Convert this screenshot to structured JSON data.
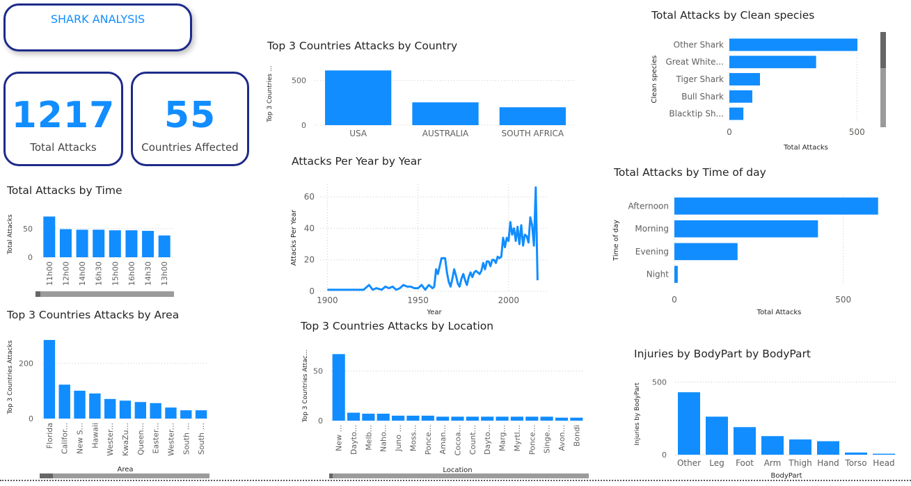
{
  "header": {
    "title": "SHARK ANALYSIS"
  },
  "kpis": {
    "total_attacks": {
      "value": "1217",
      "label": "Total Attacks"
    },
    "countries": {
      "value": "55",
      "label": "Countries Affected"
    }
  },
  "colors": {
    "bar": "#118dff",
    "border": "#1d2a8a",
    "grid": "#c8c8c8",
    "text": "#605e5c"
  },
  "chart_data": [
    {
      "id": "time",
      "type": "bar",
      "title": "Total Attacks by Time",
      "xlabel": "",
      "ylabel": "Total Attacks",
      "categories": [
        "11h00",
        "12h00",
        "14h00",
        "16h30",
        "15h00",
        "16h00",
        "14h30",
        "13h00"
      ],
      "values": [
        71,
        49,
        48,
        48,
        47,
        47,
        46,
        38
      ],
      "yticks": [
        0,
        50
      ],
      "ylim": [
        0,
        80
      ]
    },
    {
      "id": "area",
      "type": "bar",
      "title": "Top 3 Countries Attacks by Area",
      "xlabel": "Area",
      "ylabel": "Top 3 Countries Attacks",
      "categories": [
        "Florida",
        "Califor...",
        "New S...",
        "Hawaii",
        "Wester...",
        "KwaZu...",
        "Queen...",
        "Easter...",
        "Wester...",
        "South ...",
        "South ..."
      ],
      "values": [
        285,
        123,
        101,
        91,
        71,
        65,
        60,
        56,
        40,
        30,
        30
      ],
      "yticks": [
        0,
        200
      ],
      "ylim": [
        0,
        300
      ]
    },
    {
      "id": "country",
      "type": "bar",
      "title": "Top 3 Countries Attacks by Country",
      "xlabel": "",
      "ylabel": "Top 3 Countries ...",
      "categories": [
        "USA",
        "AUSTRALIA",
        "SOUTH AFRICA"
      ],
      "values": [
        612,
        255,
        200
      ],
      "yticks": [
        0,
        500
      ],
      "ylim": [
        0,
        700
      ]
    },
    {
      "id": "year",
      "type": "line",
      "title": "Attacks Per Year by Year",
      "xlabel": "Year",
      "ylabel": "Attacks Per Year",
      "x": [
        1900,
        1905,
        1910,
        1915,
        1920,
        1923,
        1925,
        1927,
        1930,
        1932,
        1934,
        1936,
        1938,
        1940,
        1942,
        1944,
        1946,
        1948,
        1950,
        1952,
        1954,
        1956,
        1958,
        1959,
        1960,
        1961,
        1962,
        1963,
        1964,
        1965,
        1966,
        1967,
        1968,
        1969,
        1970,
        1971,
        1972,
        1973,
        1974,
        1975,
        1976,
        1977,
        1978,
        1979,
        1980,
        1981,
        1982,
        1983,
        1984,
        1985,
        1986,
        1987,
        1988,
        1989,
        1990,
        1991,
        1992,
        1993,
        1994,
        1995,
        1996,
        1997,
        1998,
        1999,
        2000,
        2001,
        2002,
        2003,
        2004,
        2005,
        2006,
        2007,
        2008,
        2009,
        2010,
        2011,
        2012,
        2013,
        2014,
        2015,
        2016
      ],
      "y": [
        1,
        1,
        1,
        1,
        1,
        4,
        1,
        2,
        1,
        3,
        2,
        3,
        1,
        2,
        4,
        3,
        3,
        2,
        2,
        4,
        1,
        4,
        2,
        3,
        14,
        11,
        16,
        21,
        21,
        21,
        12,
        6,
        3,
        8,
        14,
        10,
        5,
        3,
        8,
        11,
        7,
        4,
        9,
        12,
        9,
        12,
        13,
        12,
        11,
        13,
        18,
        14,
        19,
        19,
        16,
        20,
        20,
        18,
        22,
        21,
        22,
        34,
        28,
        34,
        32,
        44,
        36,
        40,
        32,
        41,
        30,
        42,
        29,
        36,
        35,
        31,
        47,
        42,
        29,
        66,
        7
      ],
      "xticks": [
        1900,
        1950,
        2000
      ],
      "yticks": [
        0,
        20,
        40,
        60
      ],
      "xlim": [
        1896,
        2022
      ],
      "ylim": [
        0,
        68
      ]
    },
    {
      "id": "location",
      "type": "bar",
      "title": "Top 3 Countries Attacks by Location",
      "xlabel": "Location",
      "ylabel": "Top 3 Countries Attac...",
      "categories": [
        "New ...",
        "Dayto...",
        "Melb...",
        "Naho...",
        "Juno ...",
        "Moss...",
        "Ponce...",
        "Aman...",
        "Cocoa...",
        "Count...",
        "Dayto...",
        "Marg...",
        "Myrtl...",
        "Ponce...",
        "Singe...",
        "Avon...",
        "Bondi"
      ],
      "values": [
        67,
        8,
        7,
        7,
        5,
        5,
        5,
        4,
        4,
        4,
        4,
        4,
        4,
        4,
        4,
        3,
        3
      ],
      "yticks": [
        0,
        50
      ],
      "ylim": [
        0,
        70
      ]
    },
    {
      "id": "species",
      "type": "bar",
      "orientation": "horizontal",
      "title": "Total Attacks by Clean species",
      "xlabel": "Total Attacks",
      "ylabel": "Clean species",
      "categories": [
        "Other Shark",
        "Great White...",
        "Tiger Shark",
        "Bull Shark",
        "Blacktip Sh..."
      ],
      "values": [
        502,
        340,
        120,
        90,
        55
      ],
      "xticks": [
        0,
        500
      ],
      "xlim": [
        0,
        600
      ]
    },
    {
      "id": "timeofday",
      "type": "bar",
      "orientation": "horizontal",
      "title": "Total Attacks by Time of day",
      "xlabel": "Total Attacks",
      "ylabel": "Time of day",
      "categories": [
        "Afternoon",
        "Morning",
        "Evening",
        "Night"
      ],
      "values": [
        603,
        425,
        187,
        10
      ],
      "xticks": [
        0,
        500
      ],
      "xlim": [
        0,
        620
      ]
    },
    {
      "id": "bodypart",
      "type": "bar",
      "title": "Injuries by BodyPart by BodyPart",
      "xlabel": "BodyPart",
      "ylabel": "Injuries by BodyPart",
      "categories": [
        "Other",
        "Leg",
        "Foot",
        "Arm",
        "Thigh",
        "Hand",
        "Torso",
        "Head"
      ],
      "values": [
        430,
        262,
        190,
        128,
        105,
        93,
        15,
        7
      ],
      "yticks": [
        0,
        500
      ],
      "ylim": [
        0,
        560
      ]
    }
  ]
}
